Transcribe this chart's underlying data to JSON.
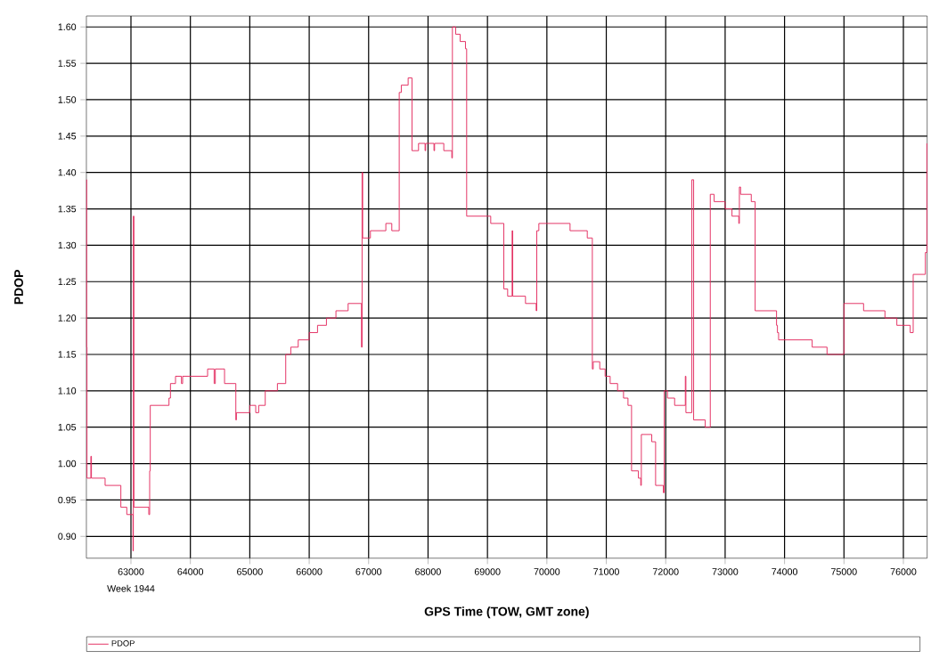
{
  "chart_data": {
    "type": "step",
    "xlabel": "GPS Time (TOW, GMT zone)",
    "ylabel": "PDOP",
    "annotations": [
      "Week 1944"
    ],
    "xlim": [
      62250,
      76400
    ],
    "ylim": [
      0.87,
      1.615
    ],
    "xticks": [
      63000,
      64000,
      65000,
      66000,
      67000,
      68000,
      69000,
      70000,
      71000,
      72000,
      73000,
      74000,
      75000,
      76000
    ],
    "yticks": [
      {
        "value": 0.9,
        "label": "0.90"
      },
      {
        "value": 0.95,
        "label": "0.95"
      },
      {
        "value": 1.0,
        "label": "1.00"
      },
      {
        "value": 1.05,
        "label": "1.05"
      },
      {
        "value": 1.1,
        "label": "1.10"
      },
      {
        "value": 1.15,
        "label": "1.15"
      },
      {
        "value": 1.2,
        "label": "1.20"
      },
      {
        "value": 1.25,
        "label": "1.25"
      },
      {
        "value": 1.3,
        "label": "1.30"
      },
      {
        "value": 1.35,
        "label": "1.35"
      },
      {
        "value": 1.4,
        "label": "1.40"
      },
      {
        "value": 1.45,
        "label": "1.45"
      },
      {
        "value": 1.5,
        "label": "1.50"
      },
      {
        "value": 1.55,
        "label": "1.55"
      },
      {
        "value": 1.6,
        "label": "1.60"
      }
    ],
    "grid": true,
    "legend": "bottom",
    "x": [
      62250,
      62255,
      62260,
      62325,
      62335,
      62565,
      62830,
      62930,
      63035,
      63040,
      63050,
      63300,
      63315,
      63325,
      63640,
      63665,
      63750,
      63850,
      63870,
      64290,
      64400,
      64420,
      64575,
      64765,
      64775,
      65000,
      65100,
      65150,
      65260,
      65465,
      65605,
      65690,
      65815,
      66000,
      66140,
      66290,
      66450,
      66655,
      66880,
      66890,
      66900,
      67030,
      67290,
      67390,
      67515,
      67550,
      67665,
      67730,
      67840,
      67950,
      67960,
      68100,
      68110,
      68265,
      68400,
      68410,
      68465,
      68540,
      68630,
      68650,
      69055,
      69275,
      69340,
      69415,
      69425,
      69640,
      69820,
      69830,
      69865,
      70390,
      70680,
      70765,
      70780,
      70890,
      70980,
      71065,
      71190,
      71290,
      71365,
      71425,
      71540,
      71580,
      71590,
      71765,
      71830,
      71960,
      71975,
      72030,
      72150,
      72330,
      72340,
      72440,
      72470,
      72665,
      72750,
      72815,
      73000,
      73115,
      73230,
      73240,
      73260,
      73440,
      73505,
      73865,
      73880,
      73900,
      74140,
      74465,
      74715,
      75000,
      75330,
      75690,
      75890,
      76115,
      76165,
      76370,
      76395
    ],
    "series": [
      {
        "name": "PDOP",
        "color": "#e2285c",
        "values": [
          1.39,
          1.16,
          0.98,
          1.01,
          0.98,
          0.97,
          0.94,
          0.93,
          0.88,
          1.34,
          0.94,
          0.93,
          0.99,
          1.08,
          1.09,
          1.11,
          1.12,
          1.11,
          1.12,
          1.13,
          1.11,
          1.13,
          1.11,
          1.06,
          1.07,
          1.08,
          1.07,
          1.08,
          1.1,
          1.11,
          1.15,
          1.16,
          1.17,
          1.18,
          1.19,
          1.2,
          1.21,
          1.22,
          1.16,
          1.4,
          1.31,
          1.32,
          1.33,
          1.32,
          1.51,
          1.52,
          1.53,
          1.43,
          1.44,
          1.43,
          1.44,
          1.43,
          1.44,
          1.43,
          1.42,
          1.6,
          1.59,
          1.58,
          1.57,
          1.34,
          1.33,
          1.24,
          1.23,
          1.32,
          1.23,
          1.22,
          1.21,
          1.32,
          1.33,
          1.32,
          1.31,
          1.13,
          1.14,
          1.13,
          1.12,
          1.11,
          1.1,
          1.09,
          1.08,
          0.99,
          0.98,
          0.97,
          1.04,
          1.03,
          0.97,
          0.96,
          1.1,
          1.09,
          1.08,
          1.12,
          1.07,
          1.39,
          1.06,
          1.05,
          1.37,
          1.36,
          1.35,
          1.34,
          1.33,
          1.38,
          1.37,
          1.36,
          1.21,
          1.19,
          1.18,
          1.17,
          1.17,
          1.16,
          1.15,
          1.22,
          1.21,
          1.2,
          1.19,
          1.18,
          1.26,
          1.29,
          1.44
        ]
      }
    ]
  }
}
